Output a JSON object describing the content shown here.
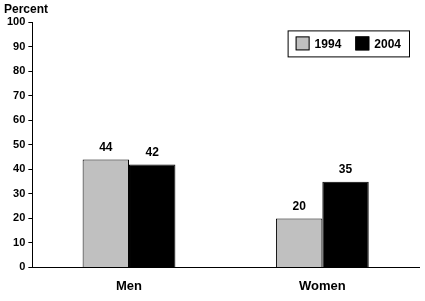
{
  "chart_data": {
    "type": "bar",
    "ylabel": "Percent",
    "categories": [
      "Men",
      "Women"
    ],
    "series": [
      {
        "name": "1994",
        "color": "#c0c0c0",
        "values": [
          44,
          20
        ]
      },
      {
        "name": "2004",
        "color": "#000000",
        "values": [
          42,
          35
        ]
      }
    ],
    "ylim": [
      0,
      100
    ],
    "yticks": [
      0,
      10,
      20,
      30,
      40,
      50,
      60,
      70,
      80,
      90,
      100
    ],
    "grid": false,
    "legend": "upper right",
    "data_labels": true
  }
}
